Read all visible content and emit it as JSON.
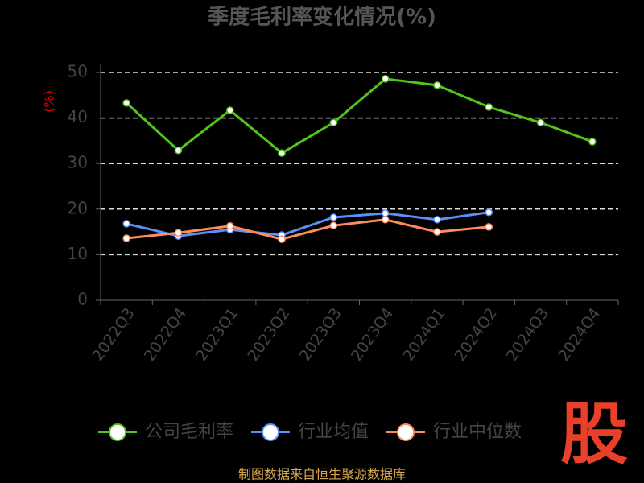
{
  "chart_data": {
    "type": "line",
    "title": "季度毛利率变化情况(%)",
    "y_label": "(%)",
    "categories": [
      "2022Q3",
      "2022Q4",
      "2023Q1",
      "2023Q2",
      "2023Q3",
      "2023Q4",
      "2024Q1",
      "2024Q2",
      "2024Q3",
      "2024Q4"
    ],
    "series": [
      {
        "name": "公司毛利率",
        "color": "#52c41a",
        "values": [
          43.3,
          32.9,
          41.7,
          32.3,
          39.0,
          48.6,
          47.2,
          42.4,
          39.0,
          34.8
        ]
      },
      {
        "name": "行业均值",
        "color": "#5b8ff9",
        "values": [
          16.8,
          14.1,
          15.5,
          14.3,
          18.2,
          19.1,
          17.7,
          19.3,
          null,
          null
        ]
      },
      {
        "name": "行业中位数",
        "color": "#ff8c5a",
        "values": [
          13.6,
          14.8,
          16.3,
          13.4,
          16.4,
          17.7,
          15.0,
          16.1,
          null,
          null
        ]
      }
    ],
    "ylim": [
      0,
      50
    ],
    "yticks": [
      0,
      10,
      20,
      30,
      40,
      50
    ],
    "grid": true,
    "source": "制图数据来自恒生聚源数据库",
    "logo": "股"
  }
}
